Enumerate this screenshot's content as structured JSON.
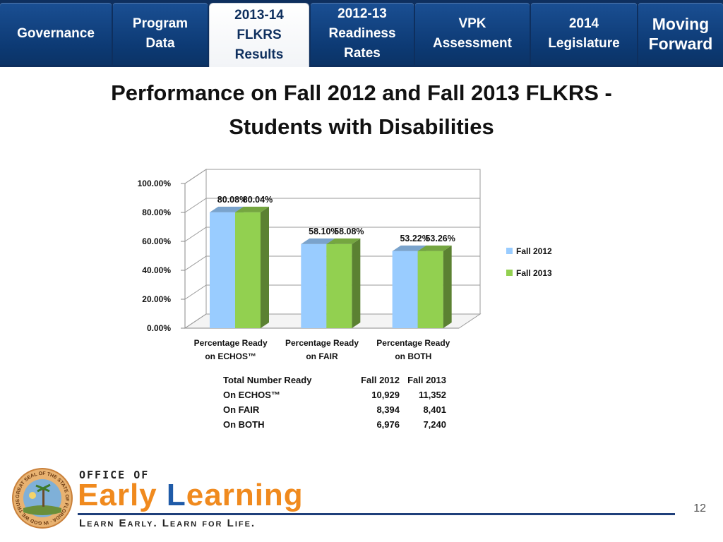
{
  "nav": {
    "tabs": [
      {
        "label": "Governance",
        "active": false
      },
      {
        "label": "Program\nData",
        "active": false
      },
      {
        "label": "2013-14\nFLKRS\nResults",
        "active": true
      },
      {
        "label": "2012-13\nReadiness\nRates",
        "active": false
      },
      {
        "label": "VPK\nAssessment",
        "active": false
      },
      {
        "label": "2014\nLegislature",
        "active": false
      },
      {
        "label": "Moving\nForward",
        "active": false
      }
    ]
  },
  "title": "Performance on Fall 2012 and Fall 2013 FLKRS -\nStudents with Disabilities",
  "chart_data": {
    "type": "bar",
    "categories": [
      "Percentage Ready\non ECHOS™",
      "Percentage Ready\non FAIR",
      "Percentage Ready\non BOTH"
    ],
    "series": [
      {
        "name": "Fall 2012",
        "values": [
          80.08,
          58.1,
          53.22
        ],
        "labels": [
          "80.08%",
          "58.10%",
          "53.22%"
        ],
        "color": "#99ccff"
      },
      {
        "name": "Fall 2013",
        "values": [
          80.04,
          58.08,
          53.26
        ],
        "labels": [
          "80.04%",
          "58.08%",
          "53.26%"
        ],
        "color": "#92d050"
      }
    ],
    "yticks": [
      "0.00%",
      "20.00%",
      "40.00%",
      "60.00%",
      "80.00%",
      "100.00%"
    ],
    "ylim": [
      0,
      100
    ],
    "grid": true,
    "legend_position": "right",
    "style": "3d-clustered"
  },
  "totals_table": {
    "header": [
      "Total Number Ready",
      "Fall 2012",
      "Fall 2013"
    ],
    "rows": [
      [
        "On ECHOS™",
        "10,929",
        "11,352"
      ],
      [
        "On FAIR",
        "8,394",
        "8,401"
      ],
      [
        "On BOTH",
        "6,976",
        "7,240"
      ]
    ]
  },
  "footer": {
    "logo_top": "OFFICE OF",
    "logo_main_1": "Early ",
    "logo_main_2": "L",
    "logo_main_3": "earning",
    "tagline": "Learn Early. Learn for Life.",
    "seal_text": "GREAT SEAL OF THE STATE OF FLORIDA · IN GOD WE TRUST ·",
    "page_number": "12"
  },
  "colors": {
    "nav_bg": "#0e2f5e",
    "tab_active_text": "#0e2f5e",
    "logo_orange": "#f08a1e",
    "logo_blue": "#1f5ba8"
  }
}
